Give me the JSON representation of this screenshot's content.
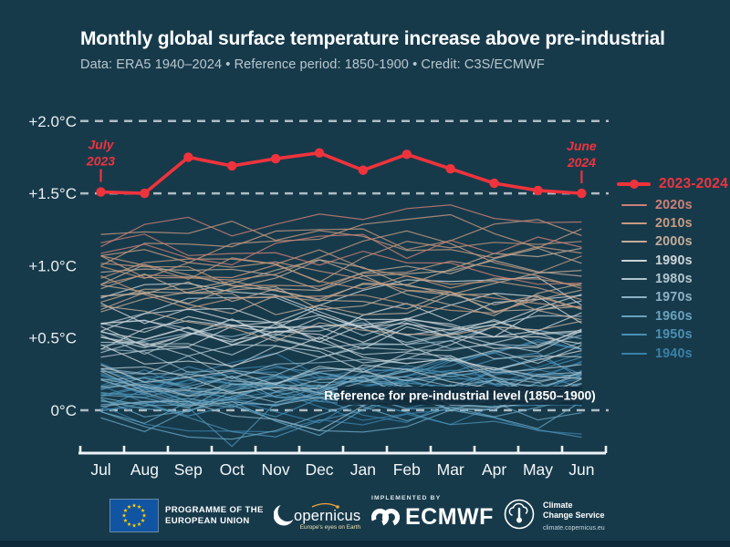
{
  "header": {
    "title": "Monthly global surface temperature increase above pre-industrial",
    "subtitle": "Data: ERA5 1940–2024 • Reference period: 1850-1900 • Credit: C3S/ECMWF"
  },
  "chart_data": {
    "type": "line",
    "x_categories": [
      "Jul",
      "Aug",
      "Sep",
      "Oct",
      "Nov",
      "Dec",
      "Jan",
      "Feb",
      "Mar",
      "Apr",
      "May",
      "Jun"
    ],
    "y_ticks": [
      {
        "label": "0°C",
        "value": 0
      },
      {
        "label": "+0.5°C",
        "value": 0.5
      },
      {
        "label": "+1.0°C",
        "value": 1.0
      },
      {
        "label": "+1.5°C",
        "value": 1.5
      },
      {
        "label": "+2.0°C",
        "value": 2.0
      }
    ],
    "ylim": [
      -0.35,
      2.15
    ],
    "gridlines_at": [
      0,
      1.5,
      2.0
    ],
    "grid_on": true,
    "legend_position": "right",
    "main_series": {
      "name": "2023-2024",
      "color": "#ef333c",
      "values": [
        1.51,
        1.5,
        1.75,
        1.69,
        1.74,
        1.78,
        1.66,
        1.77,
        1.67,
        1.57,
        1.52,
        1.5
      ]
    },
    "background_decades": [
      {
        "name": "1940s",
        "color": "#3a80a7",
        "years": 10,
        "range": [
          0.0,
          0.3
        ]
      },
      {
        "name": "1950s",
        "color": "#4b90b3",
        "years": 10,
        "range": [
          -0.02,
          0.28
        ]
      },
      {
        "name": "1960s",
        "color": "#68a2bd",
        "years": 10,
        "range": [
          0.02,
          0.32
        ]
      },
      {
        "name": "1970s",
        "color": "#8db2c3",
        "years": 10,
        "range": [
          0.08,
          0.42
        ]
      },
      {
        "name": "1980s",
        "color": "#b2c6ce",
        "years": 10,
        "range": [
          0.28,
          0.58
        ]
      },
      {
        "name": "1990s",
        "color": "#ccd5d8",
        "years": 10,
        "range": [
          0.42,
          0.72
        ]
      },
      {
        "name": "2000s",
        "color": "#c3ac99",
        "years": 10,
        "range": [
          0.62,
          0.92
        ]
      },
      {
        "name": "2010s",
        "color": "#c79a80",
        "years": 10,
        "range": [
          0.78,
          1.18
        ]
      },
      {
        "name": "2020s",
        "color": "#cd8076",
        "years": 3,
        "range": [
          1.05,
          1.32
        ]
      }
    ],
    "notable_dip": {
      "decade": "1950s",
      "month_index": 3,
      "value": -0.25
    },
    "annotations": [
      {
        "lines": [
          "July",
          "2023"
        ],
        "month_index": 0
      },
      {
        "lines": [
          "June",
          "2024"
        ],
        "month_index": 11
      }
    ],
    "reference_label": "Reference for pre-industrial level (1850–1900)"
  },
  "legend": {
    "items": [
      {
        "label": "2023-2024",
        "color": "#ef333c",
        "main": true
      },
      {
        "label": "2020s",
        "color": "#cd8076"
      },
      {
        "label": "2010s",
        "color": "#c79a80"
      },
      {
        "label": "2000s",
        "color": "#c3ac99"
      },
      {
        "label": "1990s",
        "color": "#ccd5d8"
      },
      {
        "label": "1980s",
        "color": "#b2c6ce"
      },
      {
        "label": "1970s",
        "color": "#8db2c3"
      },
      {
        "label": "1960s",
        "color": "#68a2bd"
      },
      {
        "label": "1950s",
        "color": "#4b90b3"
      },
      {
        "label": "1940s",
        "color": "#3a80a7"
      }
    ]
  },
  "footer": {
    "eu_label_line1": "PROGRAMME OF THE",
    "eu_label_line2": "EUROPEAN UNION",
    "copernicus_name": "opernicus",
    "copernicus_tagline": "Europe's eyes on Earth",
    "implemented_by": "IMPLEMENTED BY",
    "ecmwf_name": "ECMWF",
    "ccs_line1": "Climate",
    "ccs_line2": "Change Service",
    "ccs_url": "climate.copernicus.eu"
  },
  "colors": {
    "background": "#173a4b",
    "grid": "#b7c4ca",
    "axis": "#eef3f5",
    "accent_red": "#ef333c",
    "subtitle": "#b9c7ce"
  }
}
